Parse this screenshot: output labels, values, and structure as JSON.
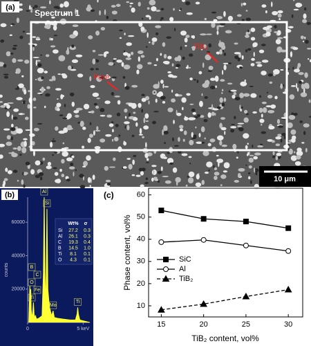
{
  "panel_a": {
    "label": "(a)",
    "spectrum_label": "Spectrum 1",
    "annotations": [
      "TiB₂",
      "Pore"
    ],
    "scale_bar": "10 μm"
  },
  "chart_data": [
    {
      "type": "area",
      "panel_label": "(b)",
      "y_label": "counts",
      "color": "#ffff33",
      "x": [
        0.1,
        0.18,
        0.2,
        0.25,
        0.28,
        0.32,
        0.4,
        0.45,
        0.52,
        0.58,
        0.65,
        0.71,
        0.8,
        1.0,
        1.3,
        1.42,
        1.49,
        1.56,
        1.64,
        1.74,
        1.82,
        1.95,
        2.15,
        2.29,
        2.4,
        2.7,
        3.2,
        3.8,
        4.3,
        4.45,
        4.51,
        4.57,
        4.7,
        5.0,
        5.6
      ],
      "values": [
        0,
        18000,
        22000,
        12000,
        20000,
        8000,
        3000,
        5000,
        12000,
        5000,
        3000,
        4000,
        2000,
        2500,
        4000,
        30000,
        75000,
        30000,
        8000,
        68000,
        20000,
        10000,
        4000,
        7000,
        3000,
        2500,
        2000,
        1500,
        1500,
        5000,
        9000,
        5000,
        1500,
        1000,
        0
      ],
      "xlim": [
        0,
        5.6
      ],
      "ylim": [
        0,
        75000
      ],
      "xticks": [
        0,
        {
          "value": 5,
          "label": "5 keV"
        }
      ],
      "yticks": [
        20000,
        40000,
        60000
      ],
      "peak_labels": [
        {
          "label": "Al",
          "x": 1.49
        },
        {
          "label": "Si",
          "x": 1.74
        },
        {
          "label": "B",
          "x": 0.18
        },
        {
          "label": "C",
          "x": 0.28
        },
        {
          "label": "O",
          "x": 0.52
        },
        {
          "label": "Fe",
          "x": 0.71
        },
        {
          "label": "Ti",
          "x": 0.45
        },
        {
          "label": "Mo",
          "x": 2.29
        },
        {
          "label": "Ti",
          "x": 4.51
        }
      ],
      "table": {
        "header": [
          "Wt%",
          "σ"
        ],
        "rows": [
          [
            "Si",
            "27.2",
            "0.3"
          ],
          [
            "Al",
            "26.1",
            "0.3"
          ],
          [
            "C",
            "19.3",
            "0.4"
          ],
          [
            "B",
            "14.5",
            "1.0"
          ],
          [
            "Ti",
            "8.1",
            "0.1"
          ],
          [
            "O",
            "4.3",
            "0.1"
          ]
        ]
      }
    },
    {
      "type": "line",
      "panel_label": "(c)",
      "x_label": "TiB₂ content, vol%",
      "y_label": "Phase content, vol%",
      "x": [
        15,
        20,
        25,
        30
      ],
      "xlim": [
        13.5,
        31.7
      ],
      "ylim": [
        5,
        63
      ],
      "xticks": [
        15,
        20,
        25,
        30
      ],
      "yticks": [
        10,
        20,
        30,
        40,
        50,
        60
      ],
      "legend": "center left",
      "series": [
        {
          "name": "SiC",
          "color": "#000000",
          "marker": "square",
          "marker_fill": "#000000",
          "line_style": "solid",
          "values": [
            53,
            49.2,
            48,
            45
          ]
        },
        {
          "name": "Al",
          "color": "#000000",
          "marker": "circle",
          "marker_fill": "#ffffff",
          "line_style": "solid",
          "values": [
            38.7,
            39.7,
            37.2,
            34.7
          ]
        },
        {
          "name": "TiB₂",
          "color": "#000000",
          "marker": "triangle",
          "marker_fill": "#000000",
          "line_style": "dashed",
          "values": [
            8.2,
            10.8,
            14.2,
            17.3
          ]
        }
      ]
    }
  ]
}
